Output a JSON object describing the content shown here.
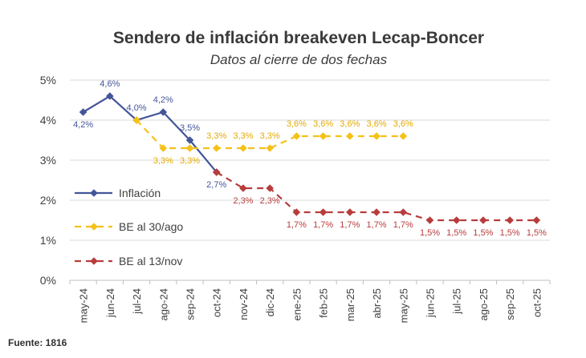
{
  "chart_data": {
    "type": "line",
    "title": "Sendero de inflación breakeven Lecap-Boncer",
    "subtitle": "Datos al cierre de dos fechas",
    "source": "Fuente: 1816",
    "categories": [
      "may-24",
      "jun-24",
      "jul-24",
      "ago-24",
      "sep-24",
      "oct-24",
      "nov-24",
      "dic-24",
      "ene-25",
      "feb-25",
      "mar-25",
      "abr-25",
      "may-25",
      "jun-25",
      "jul-25",
      "ago-25",
      "sep-25",
      "oct-25"
    ],
    "yticks": [
      "0%",
      "1%",
      "2%",
      "3%",
      "4%",
      "5%"
    ],
    "ylim": [
      0,
      5
    ],
    "grid": true,
    "legend_position": "left",
    "series": [
      {
        "name": "Inflación",
        "color": "#44559a",
        "style": "solid",
        "label_color": "#44559a",
        "values": [
          4.2,
          4.6,
          4.0,
          4.2,
          3.5,
          2.7,
          null,
          null,
          null,
          null,
          null,
          null,
          null,
          null,
          null,
          null,
          null,
          null
        ],
        "labels": [
          "4,2%",
          "4,6%",
          "4,0%",
          "4,2%",
          "3,5%",
          "2,7%",
          "",
          "",
          "",
          "",
          "",
          "",
          "",
          "",
          "",
          "",
          "",
          ""
        ],
        "label_pos": [
          "below",
          "above",
          "above",
          "above",
          "above",
          "below",
          "",
          "",
          "",
          "",
          "",
          "",
          "",
          "",
          "",
          "",
          "",
          ""
        ]
      },
      {
        "name": "BE al 30/ago",
        "color": "#f5c117",
        "style": "dashed",
        "label_color": "#e3aa00",
        "values": [
          null,
          null,
          4.0,
          3.3,
          3.3,
          3.3,
          3.3,
          3.3,
          3.6,
          3.6,
          3.6,
          3.6,
          3.6,
          null,
          null,
          null,
          null,
          null
        ],
        "labels": [
          "",
          "",
          "",
          "3,3%",
          "3,3%",
          "3,3%",
          "3,3%",
          "3,3%",
          "3,6%",
          "3,6%",
          "3,6%",
          "3,6%",
          "3,6%",
          "",
          "",
          "",
          "",
          ""
        ],
        "label_pos": [
          "",
          "",
          "",
          "below",
          "below",
          "above",
          "above",
          "above",
          "above",
          "above",
          "above",
          "above",
          "above",
          "",
          "",
          "",
          "",
          ""
        ]
      },
      {
        "name": "BE al 13/nov",
        "color": "#b83c3c",
        "style": "dashed",
        "label_color": "#b83c3c",
        "values": [
          null,
          null,
          null,
          null,
          null,
          2.7,
          2.3,
          2.3,
          1.7,
          1.7,
          1.7,
          1.7,
          1.7,
          1.5,
          1.5,
          1.5,
          1.5,
          1.5
        ],
        "labels": [
          "",
          "",
          "",
          "",
          "",
          "",
          "2,3%",
          "2,3%",
          "1,7%",
          "1,7%",
          "1,7%",
          "1,7%",
          "1,7%",
          "1,5%",
          "1,5%",
          "1,5%",
          "1,5%",
          "1,5%"
        ],
        "label_pos": [
          "",
          "",
          "",
          "",
          "",
          "",
          "below",
          "below",
          "below",
          "below",
          "below",
          "below",
          "below",
          "below",
          "below",
          "below",
          "below",
          "below"
        ]
      }
    ]
  }
}
